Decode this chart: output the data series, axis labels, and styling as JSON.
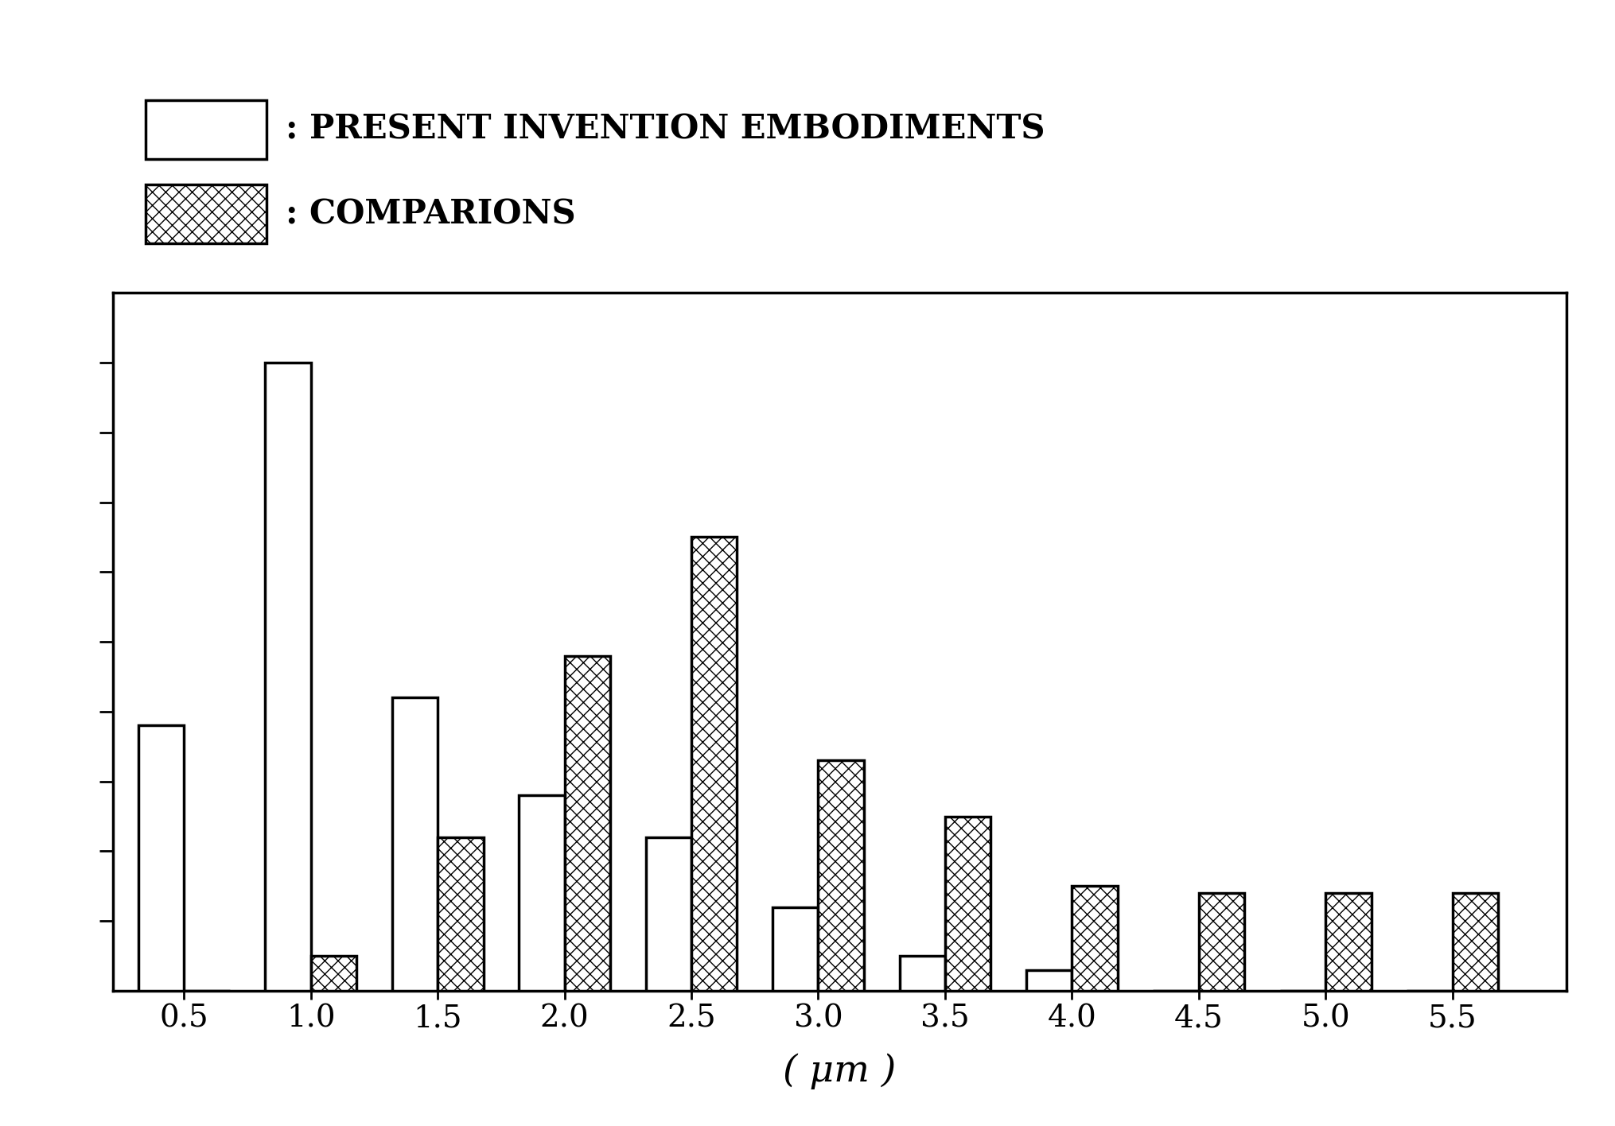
{
  "categories": [
    0.5,
    1.0,
    1.5,
    2.0,
    2.5,
    3.0,
    3.5,
    4.0,
    4.5,
    5.0,
    5.5
  ],
  "present_values": [
    38,
    90,
    42,
    28,
    22,
    12,
    5,
    3,
    0,
    0,
    0
  ],
  "comparison_values": [
    0,
    5,
    22,
    48,
    65,
    33,
    25,
    15,
    14,
    14,
    14
  ],
  "present_label": ": PRESENT INVENTION EMBODIMENTS",
  "comparison_label": ": COMPARIONS",
  "xlabel": "( μm )",
  "bar_width": 0.18,
  "ylim": [
    0,
    100
  ],
  "background_color": "#ffffff",
  "present_color": "#ffffff",
  "present_edgecolor": "#000000",
  "comparison_hatch": "xx",
  "comparison_edgecolor": "#000000",
  "comparison_facecolor": "#ffffff",
  "ytick_positions": [
    10,
    20,
    30,
    40,
    50,
    60,
    70,
    80,
    90
  ]
}
